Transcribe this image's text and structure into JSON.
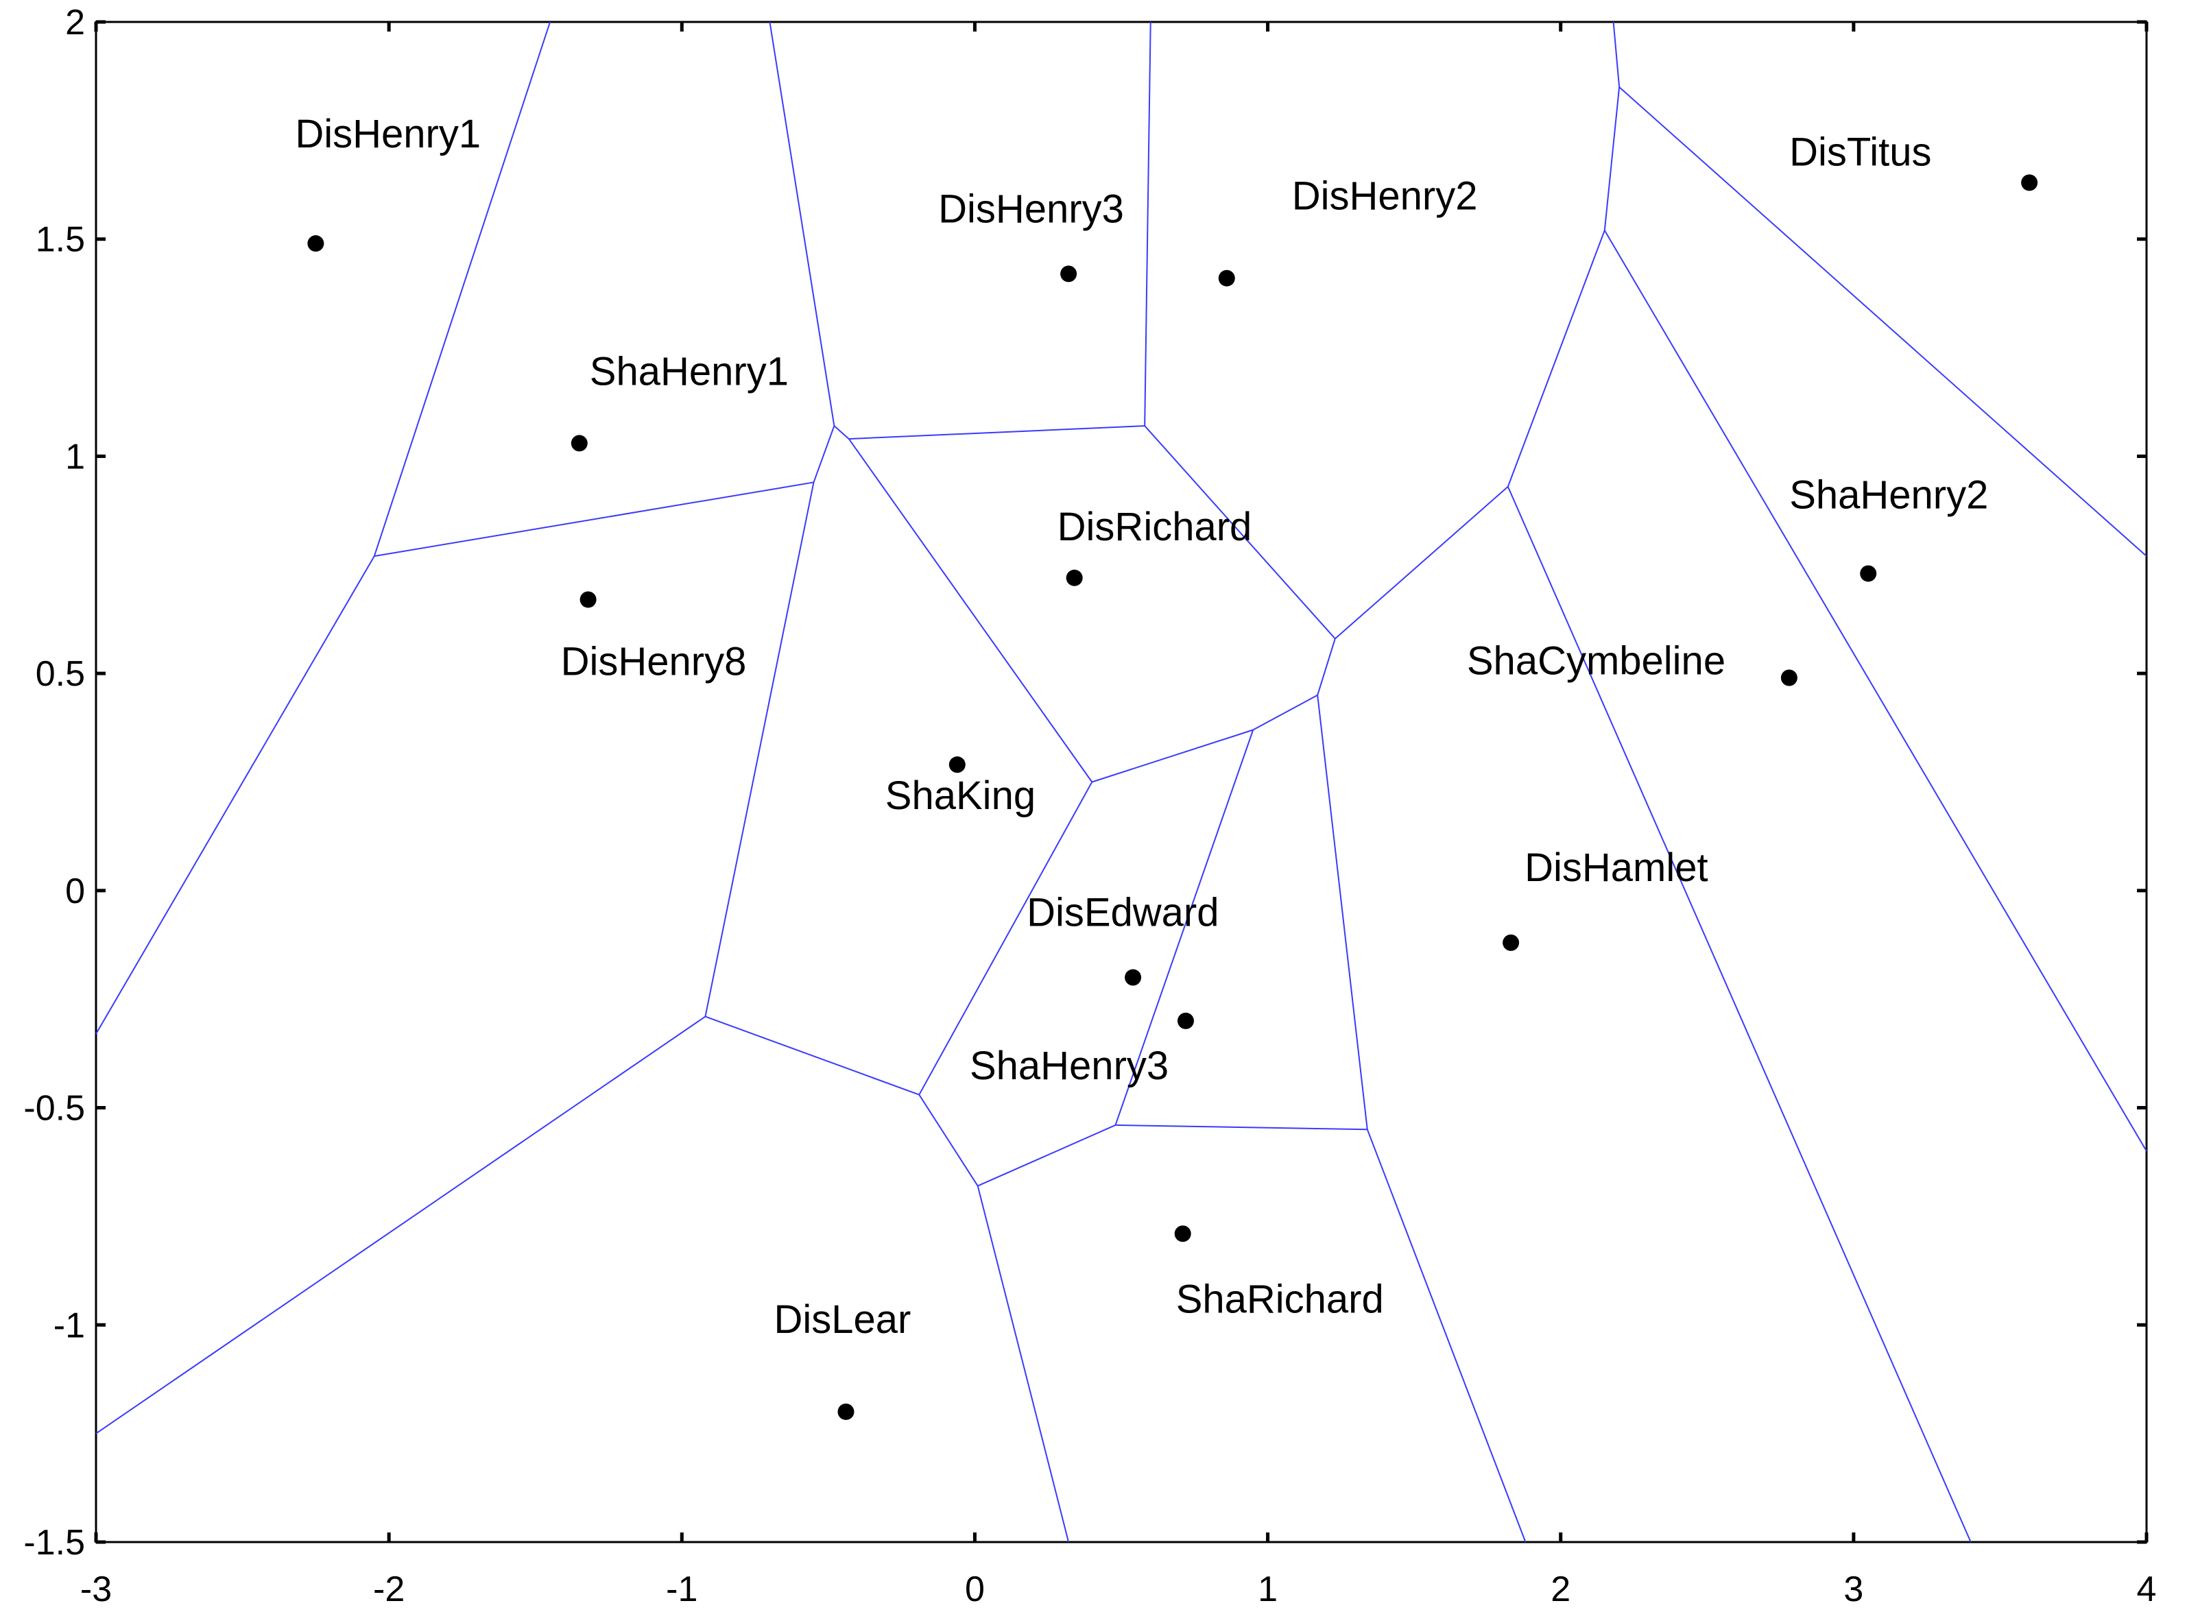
{
  "chart_data": {
    "type": "scatter",
    "title": "",
    "xlabel": "",
    "ylabel": "",
    "xlim": [
      -3,
      4
    ],
    "ylim": [
      -1.5,
      2
    ],
    "grid": false,
    "legend": "none",
    "x_ticks": [
      {
        "value": -3,
        "label": "-3"
      },
      {
        "value": -2,
        "label": "-2"
      },
      {
        "value": -1,
        "label": "-1"
      },
      {
        "value": 0,
        "label": "0"
      },
      {
        "value": 1,
        "label": "1"
      },
      {
        "value": 2,
        "label": "2"
      },
      {
        "value": 3,
        "label": "3"
      },
      {
        "value": 4,
        "label": "4"
      }
    ],
    "y_ticks": [
      {
        "value": -1.5,
        "label": "-1.5"
      },
      {
        "value": -1,
        "label": "-1"
      },
      {
        "value": -0.5,
        "label": "-0.5"
      },
      {
        "value": 0,
        "label": "0"
      },
      {
        "value": 0.5,
        "label": "0.5"
      },
      {
        "value": 1,
        "label": "1"
      },
      {
        "value": 1.5,
        "label": "1.5"
      },
      {
        "value": 2,
        "label": "2"
      }
    ],
    "points": [
      {
        "name": "DisHenry1",
        "x": -2.25,
        "y": 1.49
      },
      {
        "name": "ShaHenry1",
        "x": -1.35,
        "y": 1.03
      },
      {
        "name": "DisHenry8",
        "x": -1.32,
        "y": 0.67
      },
      {
        "name": "DisHenry3",
        "x": 0.32,
        "y": 1.42
      },
      {
        "name": "DisHenry2",
        "x": 0.86,
        "y": 1.41
      },
      {
        "name": "DisTitus",
        "x": 3.6,
        "y": 1.63
      },
      {
        "name": "DisRichard",
        "x": 0.34,
        "y": 0.72
      },
      {
        "name": "ShaHenry2",
        "x": 3.05,
        "y": 0.73
      },
      {
        "name": "ShaCymbeline",
        "x": 2.78,
        "y": 0.49
      },
      {
        "name": "ShaKing",
        "x": -0.06,
        "y": 0.29
      },
      {
        "name": "DisHamlet",
        "x": 1.83,
        "y": -0.12
      },
      {
        "name": "DisEdward",
        "x": 0.54,
        "y": -0.2
      },
      {
        "name": "ShaHenry3",
        "x": 0.72,
        "y": -0.3
      },
      {
        "name": "ShaRichard",
        "x": 0.71,
        "y": -0.79
      },
      {
        "name": "DisLear",
        "x": -0.44,
        "y": -1.2
      }
    ],
    "voronoi_edges": [
      [
        [
          -1.45,
          2.0
        ],
        [
          -2.05,
          0.77
        ]
      ],
      [
        [
          -2.05,
          0.77
        ],
        [
          -3.0,
          -0.33
        ]
      ],
      [
        [
          -2.05,
          0.77
        ],
        [
          -0.55,
          0.94
        ]
      ],
      [
        [
          -0.55,
          0.94
        ],
        [
          -0.48,
          1.07
        ]
      ],
      [
        [
          -0.48,
          1.07
        ],
        [
          -0.7,
          2.0
        ]
      ],
      [
        [
          -0.48,
          1.07
        ],
        [
          -0.43,
          1.04
        ]
      ],
      [
        [
          -0.43,
          1.04
        ],
        [
          0.58,
          1.07
        ]
      ],
      [
        [
          0.58,
          1.07
        ],
        [
          0.6,
          2.0
        ]
      ],
      [
        [
          0.58,
          1.07
        ],
        [
          1.23,
          0.58
        ]
      ],
      [
        [
          1.23,
          0.58
        ],
        [
          1.82,
          0.93
        ]
      ],
      [
        [
          1.82,
          0.93
        ],
        [
          2.15,
          1.52
        ]
      ],
      [
        [
          2.15,
          1.52
        ],
        [
          2.2,
          1.85
        ]
      ],
      [
        [
          2.2,
          1.85
        ],
        [
          2.18,
          2.0
        ]
      ],
      [
        [
          2.2,
          1.85
        ],
        [
          4.0,
          0.77
        ]
      ],
      [
        [
          2.15,
          1.52
        ],
        [
          4.0,
          -0.6
        ]
      ],
      [
        [
          1.82,
          0.93
        ],
        [
          3.4,
          -1.5
        ]
      ],
      [
        [
          1.23,
          0.58
        ],
        [
          1.17,
          0.45
        ]
      ],
      [
        [
          1.17,
          0.45
        ],
        [
          0.95,
          0.37
        ]
      ],
      [
        [
          0.95,
          0.37
        ],
        [
          0.4,
          0.25
        ]
      ],
      [
        [
          0.4,
          0.25
        ],
        [
          -0.43,
          1.04
        ]
      ],
      [
        [
          0.4,
          0.25
        ],
        [
          -0.19,
          -0.47
        ]
      ],
      [
        [
          -0.55,
          0.94
        ],
        [
          -0.92,
          -0.29
        ]
      ],
      [
        [
          -0.92,
          -0.29
        ],
        [
          -0.19,
          -0.47
        ]
      ],
      [
        [
          -0.92,
          -0.29
        ],
        [
          -3.0,
          -1.25
        ]
      ],
      [
        [
          -0.19,
          -0.47
        ],
        [
          0.01,
          -0.68
        ]
      ],
      [
        [
          0.01,
          -0.68
        ],
        [
          0.48,
          -0.54
        ]
      ],
      [
        [
          0.48,
          -0.54
        ],
        [
          0.95,
          0.37
        ]
      ],
      [
        [
          0.48,
          -0.54
        ],
        [
          1.34,
          -0.55
        ]
      ],
      [
        [
          1.34,
          -0.55
        ],
        [
          1.17,
          0.45
        ]
      ],
      [
        [
          1.34,
          -0.55
        ],
        [
          1.88,
          -1.5
        ]
      ],
      [
        [
          0.01,
          -0.68
        ],
        [
          0.32,
          -1.5
        ]
      ]
    ]
  }
}
